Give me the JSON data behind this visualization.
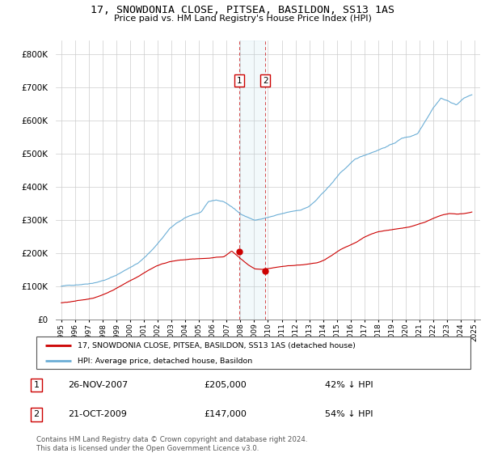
{
  "title": "17, SNOWDONIA CLOSE, PITSEA, BASILDON, SS13 1AS",
  "subtitle": "Price paid vs. HM Land Registry's House Price Index (HPI)",
  "legend_house": "17, SNOWDONIA CLOSE, PITSEA, BASILDON, SS13 1AS (detached house)",
  "legend_hpi": "HPI: Average price, detached house, Basildon",
  "transaction1_date": "26-NOV-2007",
  "transaction1_price": "£205,000",
  "transaction1_hpi": "42% ↓ HPI",
  "transaction2_date": "21-OCT-2009",
  "transaction2_price": "£147,000",
  "transaction2_hpi": "54% ↓ HPI",
  "footnote": "Contains HM Land Registry data © Crown copyright and database right 2024.\nThis data is licensed under the Open Government Licence v3.0.",
  "house_color": "#cc0000",
  "hpi_color": "#6baed6",
  "transaction1_x": 2007.9,
  "transaction2_x": 2009.8,
  "transaction1_y": 205000,
  "transaction2_y": 147000,
  "ylim": [
    0,
    840000
  ],
  "xlim_start": 1994.6,
  "xlim_end": 2025.4
}
